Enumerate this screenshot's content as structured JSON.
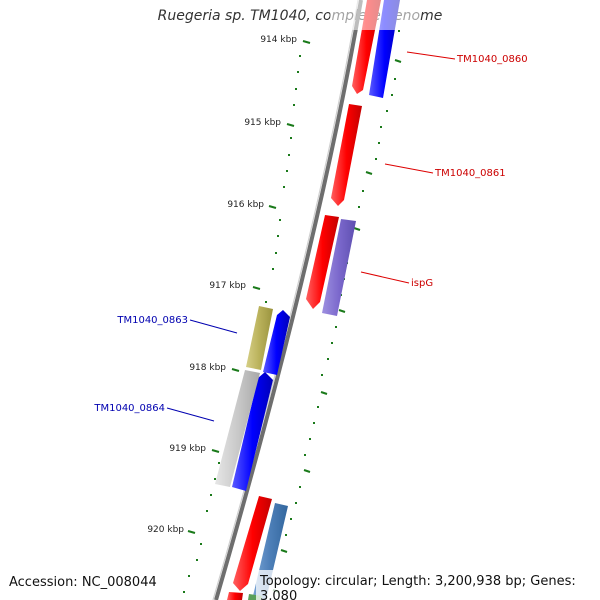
{
  "title": "Ruegeria sp. TM1040, complete genome",
  "footer": {
    "accession": "Accession: NC_008044",
    "stats": "Topology: circular; Length: 3,200,938 bp; Genes: 3,080"
  },
  "kbp_ticks": [
    "914 kbp",
    "915 kbp",
    "916 kbp",
    "917 kbp",
    "918 kbp",
    "919 kbp",
    "920 kbp"
  ],
  "colors": {
    "forward_cds": "#ff0000",
    "reverse_cds": "#0000ff",
    "ispG_blast": "#7b68cc",
    "gc_olive": "#b9b15a",
    "gc_gray": "#c9c9c9",
    "lower_blue": "#4d7fb8",
    "tick_green": "#1a7a1a",
    "backbone": "#6e6e6e",
    "forward_label": "#cc0000",
    "reverse_label": "#0000b0"
  },
  "forward_features": [
    {
      "label": "TM1040_0860"
    },
    {
      "label": "TM1040_0861"
    },
    {
      "label": "ispG"
    }
  ],
  "reverse_features": [
    {
      "label": "TM1040_0863"
    },
    {
      "label": "TM1040_0864"
    }
  ]
}
